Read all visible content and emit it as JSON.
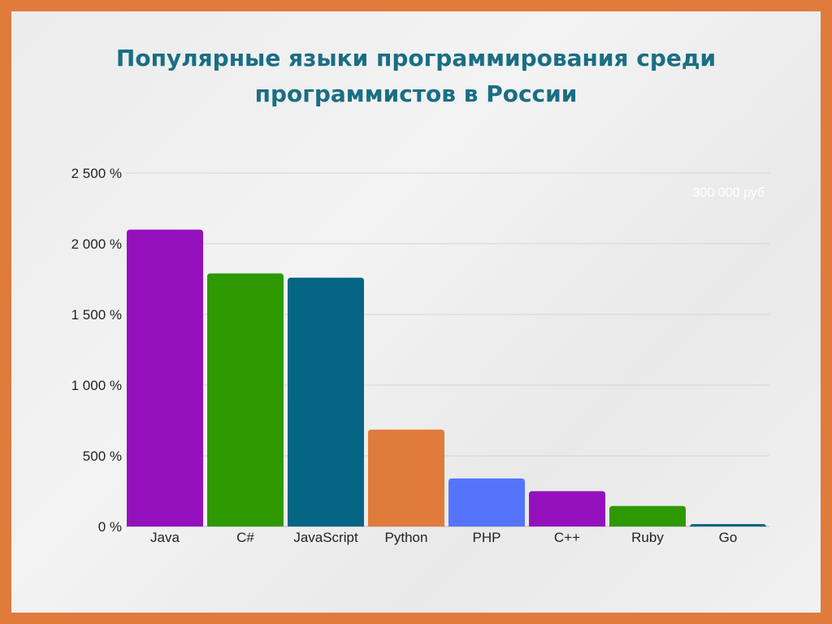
{
  "chart_data": {
    "type": "bar",
    "title": [
      "Популярные языки программирования среди",
      "программистов в России"
    ],
    "categories": [
      "Java",
      "C#",
      "JavaScript",
      "Python",
      "PHP",
      "C++",
      "Ruby",
      "Go"
    ],
    "values": [
      2100,
      1790,
      1760,
      685,
      340,
      250,
      145,
      12
    ],
    "colors": [
      "#9410bd",
      "#2e9a00",
      "#046584",
      "#e07b3c",
      "#5574fb",
      "#9410bd",
      "#2e9a00",
      "#046584"
    ],
    "ylim": [
      0,
      2500
    ],
    "yticks": [
      0,
      500,
      1000,
      1500,
      2000,
      2500
    ],
    "ytick_labels": [
      "0 %",
      "500 %",
      "1 000 %",
      "1 500 %",
      "2 000 %",
      "2 500 %"
    ],
    "xlabel": "",
    "ylabel": "",
    "grid": true,
    "legend": "none",
    "annotation": "300 000 руб"
  }
}
